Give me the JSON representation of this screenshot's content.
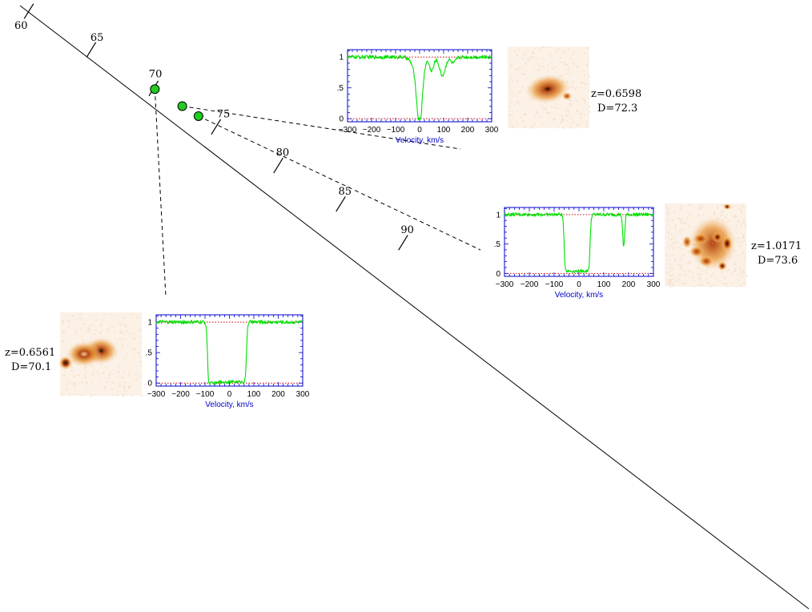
{
  "chart_data": [
    {
      "type": "line",
      "panel": "sightline-axis",
      "ticks": [
        60,
        65,
        70,
        75,
        80,
        85,
        90
      ],
      "tick_labels": [
        "60",
        "65",
        "70",
        "75",
        "80",
        "85",
        "90"
      ],
      "absorbers": [
        {
          "D": 70.1,
          "z": "0.6561"
        },
        {
          "D": 72.3,
          "z": "0.6598"
        },
        {
          "D": 73.6,
          "z": "1.0171"
        }
      ]
    },
    {
      "type": "line",
      "panel": "spectrum-A",
      "z_label": "z=0.6598",
      "d_label": "D=72.3",
      "xlabel": "Velocity, km/s",
      "xlim": [
        -300,
        300
      ],
      "ylim": [
        -0.05,
        1.12
      ],
      "xticks": [
        "−300",
        "−200",
        "−100",
        "0",
        "100",
        "200",
        "300"
      ],
      "yticks": [
        "0",
        ".5",
        "1"
      ],
      "shape": {
        "components": [
          {
            "v": 0,
            "depth": 0.88,
            "w": 11
          },
          {
            "v": -8,
            "depth": 0.25,
            "w": 20
          },
          {
            "v": 50,
            "depth": 0.22,
            "w": 9
          },
          {
            "v": 95,
            "depth": 0.3,
            "w": 12
          },
          {
            "v": 140,
            "depth": 0.1,
            "w": 10
          }
        ]
      }
    },
    {
      "type": "line",
      "panel": "spectrum-B",
      "z_label": "z=1.0171",
      "d_label": "D=73.6",
      "xlabel": "Velocity, km/s",
      "xlim": [
        -300,
        300
      ],
      "ylim": [
        -0.05,
        1.12
      ],
      "xticks": [
        "−300",
        "−200",
        "−100",
        "0",
        "100",
        "200",
        "300"
      ],
      "yticks": [
        "0",
        ".5",
        "1"
      ],
      "shape": {
        "trough": {
          "lo": -60,
          "hi": 45,
          "floor": 0.04
        },
        "components": [
          {
            "v": 180,
            "depth": 0.55,
            "w": 4
          }
        ]
      }
    },
    {
      "type": "line",
      "panel": "spectrum-C",
      "z_label": "z=0.6561",
      "d_label": "D=70.1",
      "xlabel": "Velocity, km/s",
      "xlim": [
        -300,
        300
      ],
      "ylim": [
        -0.05,
        1.12
      ],
      "xticks": [
        "−300",
        "−200",
        "−100",
        "0",
        "100",
        "200",
        "300"
      ],
      "yticks": [
        "0",
        ".5",
        "1"
      ],
      "shape": {
        "trough": {
          "lo": -90,
          "hi": 70,
          "floor": 0.02
        },
        "components": [
          {
            "v": -70,
            "depth": 0.25,
            "w": 10
          }
        ]
      }
    }
  ],
  "colors": {
    "axis": "#0000cc",
    "spectrum": "#00e000",
    "reference_lines": "#d00000",
    "marker_fill": "#22cc22",
    "galaxy_glow": "#e8922e",
    "galaxy_core": "#1a0a00"
  }
}
